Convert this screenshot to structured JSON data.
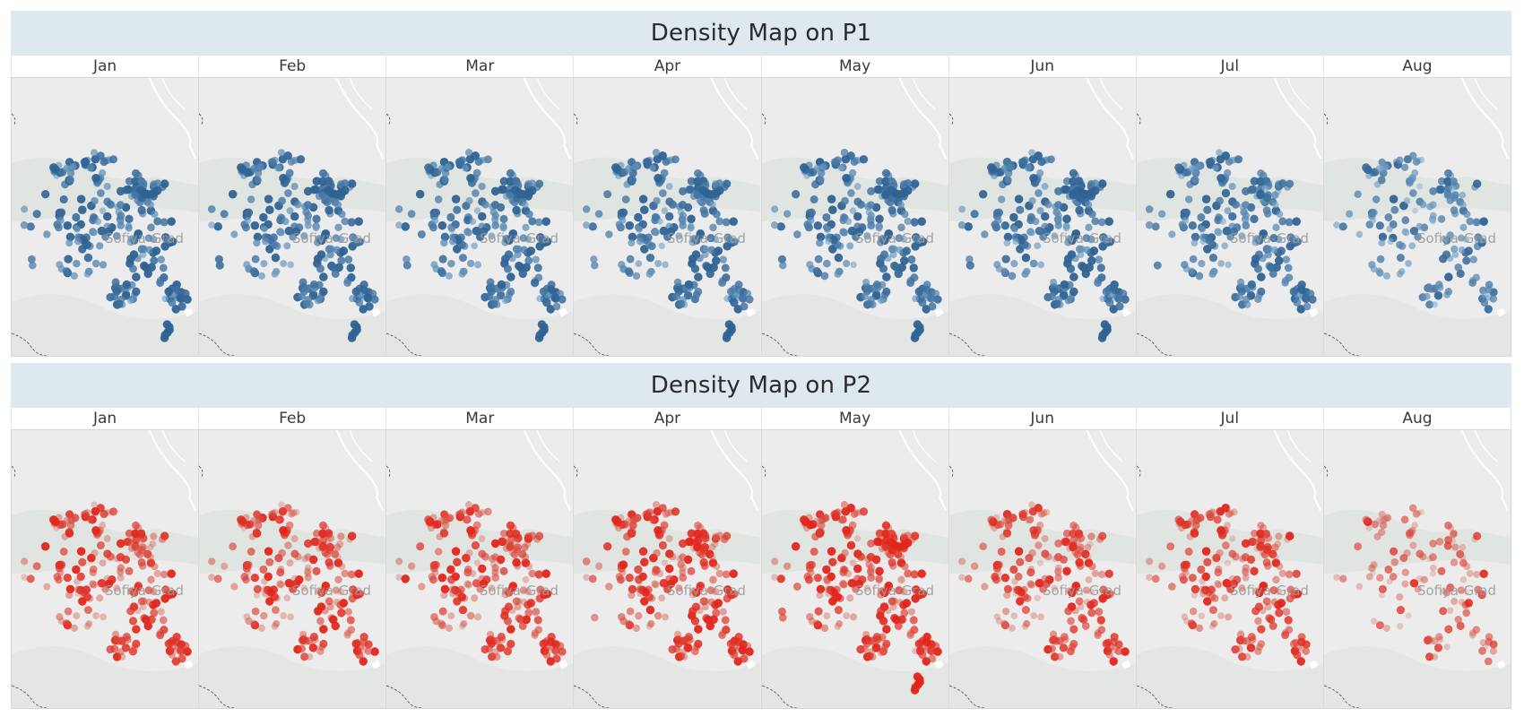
{
  "sections": [
    {
      "title": "Density Map on P1",
      "palette": "blue",
      "months": [
        "Jan",
        "Feb",
        "Mar",
        "Apr",
        "May",
        "Jun",
        "Jul",
        "Aug"
      ],
      "intensity": [
        0.9,
        0.88,
        0.86,
        0.84,
        0.86,
        0.88,
        0.8,
        0.55
      ]
    },
    {
      "title": "Density Map on P2",
      "palette": "red",
      "months": [
        "Jan",
        "Feb",
        "Mar",
        "Apr",
        "May",
        "Jun",
        "Jul",
        "Aug"
      ],
      "intensity": [
        0.75,
        0.72,
        0.78,
        0.82,
        0.85,
        0.72,
        0.7,
        0.4
      ]
    }
  ],
  "map": {
    "place_label": "Sofiya-Grad"
  },
  "colors": {
    "header_bg": "#dde9ef",
    "land": "#ececec",
    "blue_dark": "#2f6394",
    "blue_light": "#9cc6e4",
    "red_dark": "#e3261c",
    "red_light": "#c88a76"
  }
}
